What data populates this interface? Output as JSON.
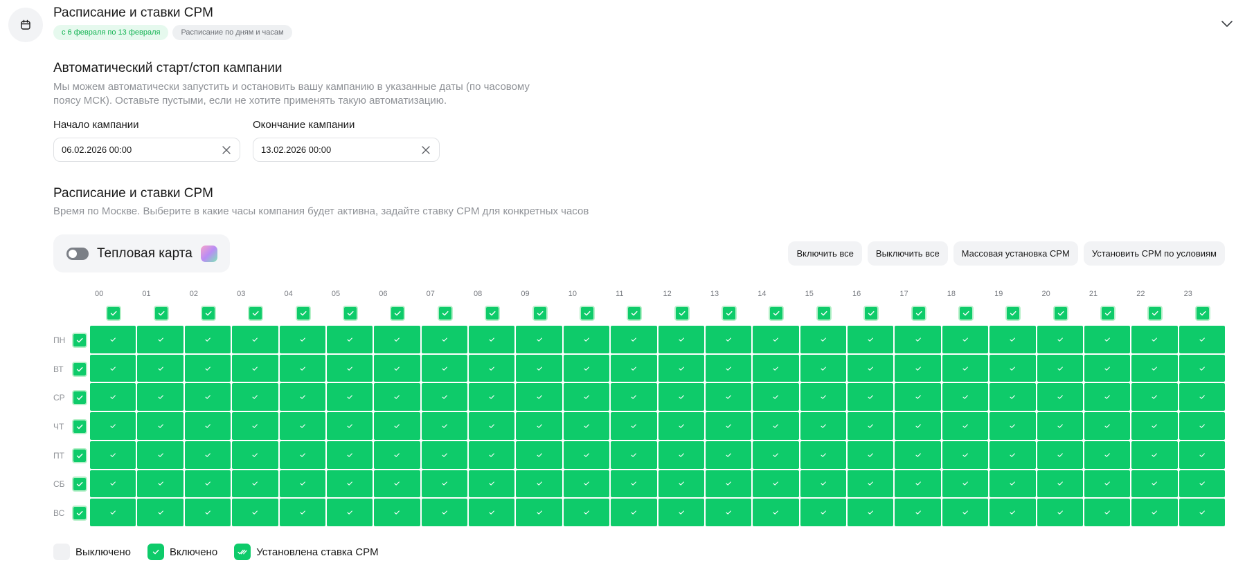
{
  "header": {
    "title": "Расписание и ставки CPM",
    "date_badge": "с 6 февраля по 13 февраля",
    "type_badge": "Расписание по дням и часам"
  },
  "auto": {
    "title": "Автоматический старт/стоп кампании",
    "description": "Мы можем автоматически запустить и остановить вашу кампанию в указанные даты (по часовому поясу МСК). Оставьте пустыми, если не хотите применять такую автоматизацию.",
    "start_label": "Начало кампании",
    "start_value": "06.02.2026 00:00",
    "end_label": "Окончание кампании",
    "end_value": "13.02.2026 00:00"
  },
  "schedule": {
    "title": "Расписание и ставки CPM",
    "description": "Время по Москве. Выберите в какие часы компания будет активна, задайте ставку CPM для конкретных часов",
    "heatmap_label": "Тепловая карта",
    "heatmap_enabled": false,
    "buttons": {
      "enable_all": "Включить все",
      "disable_all": "Выключить все",
      "bulk_cpm": "Массовая установка CPM",
      "cpm_by_conditions": "Установить CPM по условиям"
    },
    "hours": [
      "00",
      "01",
      "02",
      "03",
      "04",
      "05",
      "06",
      "07",
      "08",
      "09",
      "10",
      "11",
      "12",
      "13",
      "14",
      "15",
      "16",
      "17",
      "18",
      "19",
      "20",
      "21",
      "22",
      "23"
    ],
    "days": [
      "ПН",
      "ВТ",
      "СР",
      "ЧТ",
      "ПТ",
      "СБ",
      "ВС"
    ],
    "all_enabled": true,
    "enabled_color": "#0ecb6a",
    "disabled_color": "#f0f1f3"
  },
  "legend": {
    "off": "Выключено",
    "on": "Включено",
    "cpm_set": "Установлена ставка CPM"
  }
}
